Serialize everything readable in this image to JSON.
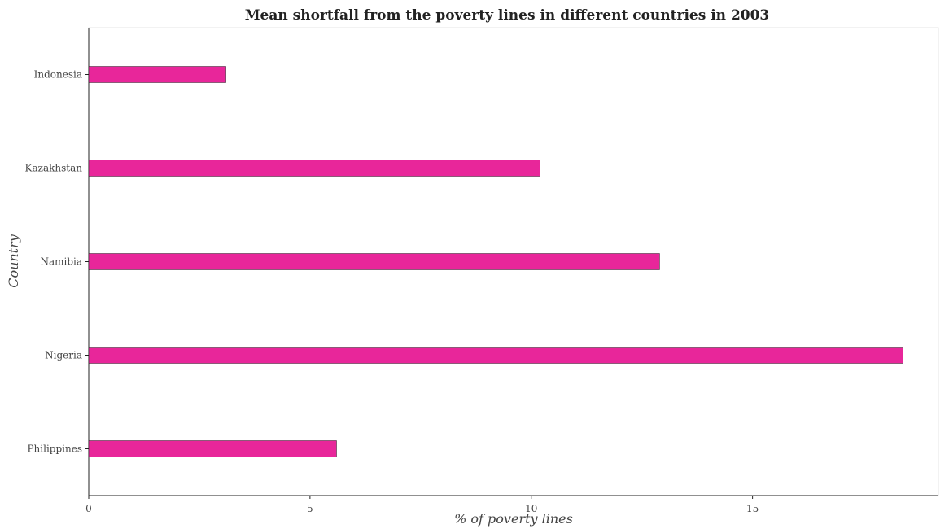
{
  "chart_data": {
    "type": "bar",
    "orientation": "horizontal",
    "title": "Mean shortfall from the poverty lines in different countries in 2003",
    "xlabel": "% of poverty lines",
    "ylabel": "Country",
    "categories": [
      "Indonesia",
      "Kazakhstan",
      "Namibia",
      "Nigeria",
      "Philippines"
    ],
    "values": [
      3.1,
      10.2,
      12.9,
      18.4,
      5.6
    ],
    "xlim": [
      0,
      19.2
    ],
    "xticks": [
      0,
      5,
      10,
      15
    ],
    "bar_color": "#e8269a",
    "grid": false,
    "legend": "none"
  }
}
